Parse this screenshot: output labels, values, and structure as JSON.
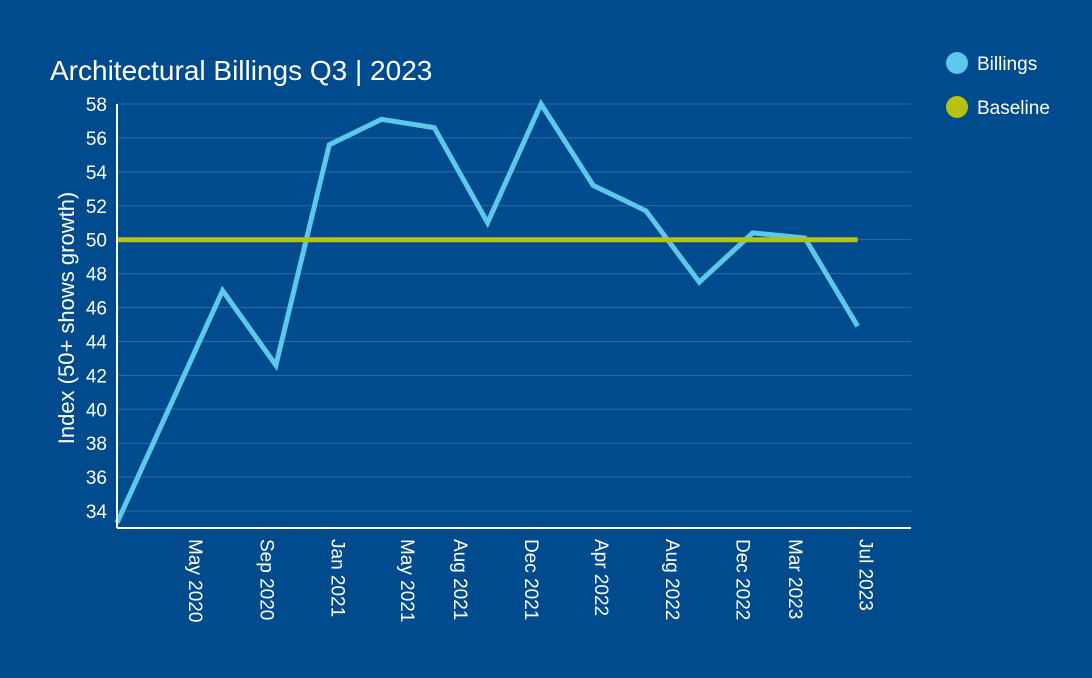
{
  "colors": {
    "background": "#004b8d",
    "text": "#ffffff",
    "grid": "#2f6aa0",
    "axis": "#ffffff"
  },
  "chart_data": {
    "type": "line",
    "title": "Architectural Billings Q3 | 2023",
    "xlabel": "",
    "ylabel": "Index (50+ shows growth)",
    "ylim": [
      33,
      58
    ],
    "yticks": [
      34,
      36,
      38,
      40,
      42,
      44,
      46,
      48,
      50,
      52,
      54,
      56,
      58
    ],
    "xlim": [
      "2020-01-01",
      "2023-10-01"
    ],
    "x_tick_labels": [
      {
        "label": "May 2020",
        "date": "2020-05-01"
      },
      {
        "label": "Sep 2020",
        "date": "2020-09-01"
      },
      {
        "label": "Jan 2021",
        "date": "2021-01-01"
      },
      {
        "label": "May 2021",
        "date": "2021-05-01"
      },
      {
        "label": "Aug 2021",
        "date": "2021-08-01"
      },
      {
        "label": "Dec 2021",
        "date": "2021-12-01"
      },
      {
        "label": "Apr 2022",
        "date": "2022-04-01"
      },
      {
        "label": "Aug 2022",
        "date": "2022-08-01"
      },
      {
        "label": "Dec 2022",
        "date": "2022-12-01"
      },
      {
        "label": "Mar 2023",
        "date": "2023-03-01"
      },
      {
        "label": "Jul 2023",
        "date": "2023-07-01"
      }
    ],
    "legend_position": "top-right",
    "grid": true,
    "series": [
      {
        "name": "Billings",
        "color": "#5bc8ec",
        "points": [
          {
            "x": "2020-01-01",
            "y": 33.3
          },
          {
            "x": "2020-07-01",
            "y": 47.0
          },
          {
            "x": "2020-10-01",
            "y": 42.6
          },
          {
            "x": "2021-01-01",
            "y": 55.6
          },
          {
            "x": "2021-04-01",
            "y": 57.1
          },
          {
            "x": "2021-07-01",
            "y": 56.6
          },
          {
            "x": "2021-10-01",
            "y": 51.0
          },
          {
            "x": "2022-01-01",
            "y": 58.0
          },
          {
            "x": "2022-04-01",
            "y": 53.2
          },
          {
            "x": "2022-07-01",
            "y": 51.7
          },
          {
            "x": "2022-10-01",
            "y": 47.5
          },
          {
            "x": "2023-01-01",
            "y": 50.4
          },
          {
            "x": "2023-04-01",
            "y": 50.1
          },
          {
            "x": "2023-07-01",
            "y": 44.9
          }
        ]
      },
      {
        "name": "Baseline",
        "color": "#b5c20f",
        "points": [
          {
            "x": "2020-01-01",
            "y": 50
          },
          {
            "x": "2023-07-01",
            "y": 50
          }
        ]
      }
    ]
  }
}
